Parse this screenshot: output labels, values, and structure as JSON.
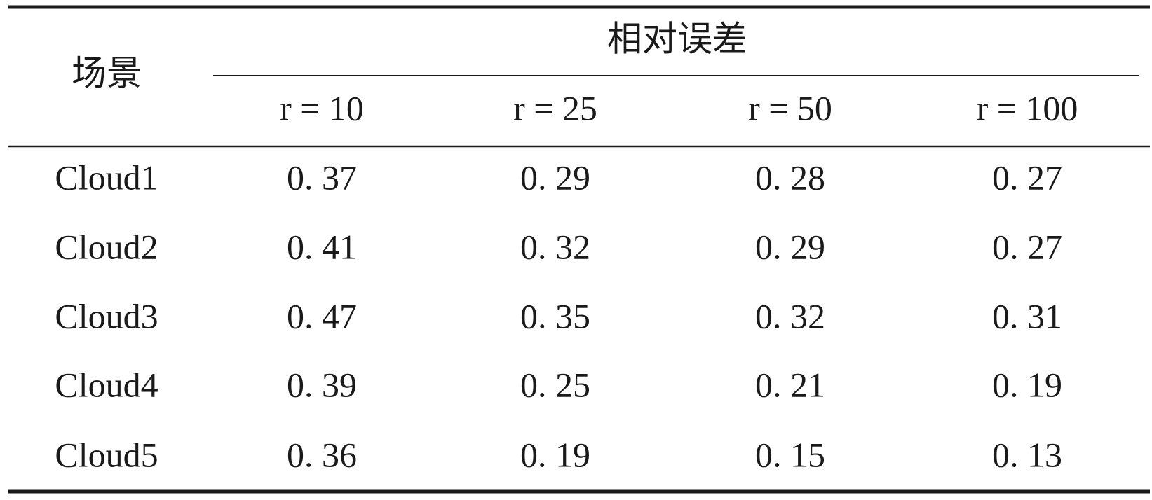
{
  "table": {
    "header": {
      "row_label": "场景",
      "group": "相对误差",
      "columns": [
        "r = 10",
        "r = 25",
        "r = 50",
        "r = 100"
      ]
    },
    "rows": [
      [
        "Cloud1",
        "0. 37",
        "0. 29",
        "0. 28",
        "0. 27"
      ],
      [
        "Cloud2",
        "0. 41",
        "0. 32",
        "0. 29",
        "0. 27"
      ],
      [
        "Cloud3",
        "0. 47",
        "0. 35",
        "0. 32",
        "0. 31"
      ],
      [
        "Cloud4",
        "0. 39",
        "0. 25",
        "0. 21",
        "0. 19"
      ],
      [
        "Cloud5",
        "0. 36",
        "0. 19",
        "0. 15",
        "0. 13"
      ]
    ]
  }
}
